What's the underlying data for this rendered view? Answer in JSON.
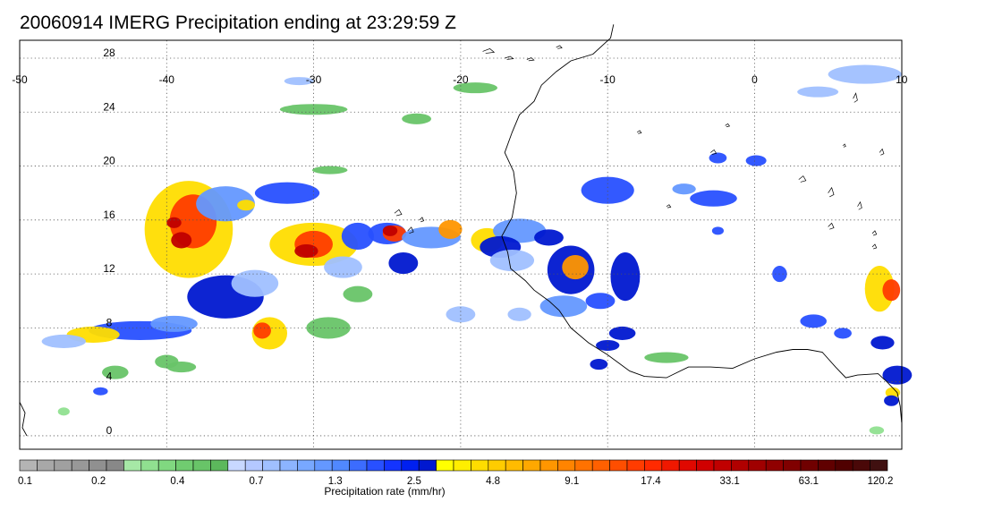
{
  "title": "20060914 IMERG Precipitation ending at 23:29:59 Z",
  "map": {
    "lon_range": [
      -50,
      10
    ],
    "lat_range": [
      -1,
      30
    ],
    "lon_ticks": [
      "-50",
      "-40",
      "-30",
      "-20",
      "-10",
      "0",
      "10"
    ],
    "lat_ticks": [
      "28",
      "24",
      "20",
      "16",
      "12",
      "8",
      "4",
      "0"
    ],
    "grid": "dotted"
  },
  "colorbar": {
    "label": "Precipitation rate (mm/hr)",
    "tick_labels": [
      "0.1",
      "0.2",
      "0.4",
      "0.7",
      "1.3",
      "2.5",
      "4.8",
      "9.1",
      "17.4",
      "33.1",
      "63.1",
      "120.2"
    ],
    "colors": [
      "#b4b4b4",
      "#a8a8a8",
      "#a0a0a0",
      "#989898",
      "#909090",
      "#888888",
      "#a6e8a6",
      "#90e090",
      "#80d880",
      "#70cc70",
      "#68c468",
      "#5cb85c",
      "#c8d8ff",
      "#b4c8ff",
      "#a0c0ff",
      "#8cb4ff",
      "#78a8ff",
      "#6498ff",
      "#5088ff",
      "#3c6cff",
      "#2850ff",
      "#1434ff",
      "#0020f0",
      "#0018d0",
      "#ffff00",
      "#ffee00",
      "#ffdd00",
      "#ffcc00",
      "#ffbb00",
      "#ffa800",
      "#ff9600",
      "#ff8400",
      "#ff7200",
      "#ff6000",
      "#ff4e00",
      "#ff3c00",
      "#ff2a00",
      "#f01800",
      "#e00800",
      "#d00000",
      "#c00000",
      "#b00000",
      "#a00000",
      "#900000",
      "#800000",
      "#700000",
      "#600000",
      "#500000",
      "#4a0808",
      "#401010"
    ]
  }
}
